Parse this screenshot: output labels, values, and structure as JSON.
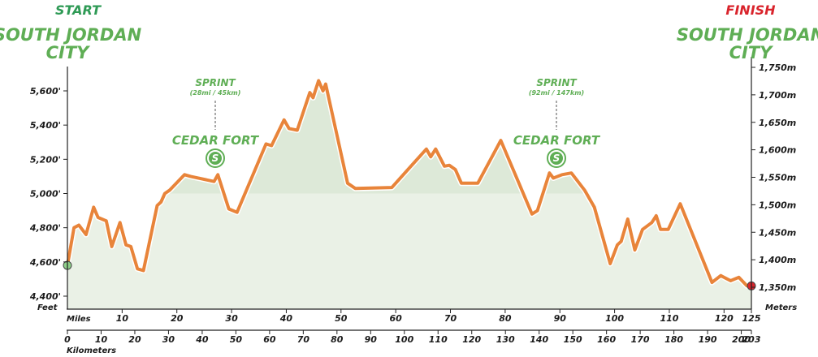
{
  "start": {
    "label": "START",
    "place_line1": "SOUTH JORDAN",
    "place_line2": "CITY"
  },
  "finish": {
    "label": "FINISH",
    "place_line1": "SOUTH JORDAN",
    "place_line2": "CITY"
  },
  "sprints": [
    {
      "title": "SPRINT",
      "detail": "(28mi / 45km)",
      "town": "CEDAR FORT",
      "icon_letter": "S",
      "mile": 27.8
    },
    {
      "title": "SPRINT",
      "detail": "(92mi / 147km)",
      "town": "CEDAR FORT",
      "icon_letter": "S",
      "mile": 91.5
    }
  ],
  "colors": {
    "profile_line": "#e8843a",
    "fill": "#eaf1e6",
    "fill_upper": "#dde9d8",
    "green": "#5fae55",
    "start_green": "#2e9a55",
    "finish_red": "#d9242c",
    "text": "#1a1a1a"
  },
  "chart_data": {
    "type": "area",
    "left_axis": {
      "title": "Feet",
      "ticks": [
        4400,
        4600,
        4800,
        5000,
        5200,
        5400,
        5600
      ],
      "tick_labels": [
        "4,400'",
        "4,600'",
        "4,800'",
        "5,000'",
        "5,200'",
        "5,400'",
        "5,600'"
      ]
    },
    "right_axis": {
      "title": "Meters",
      "ticks": [
        1350,
        1400,
        1450,
        1500,
        1550,
        1600,
        1650,
        1700,
        1750
      ],
      "tick_labels": [
        "1,350m",
        "1,400m",
        "1,450m",
        "1,500m",
        "1,550m",
        "1,600m",
        "1,650m",
        "1,700m",
        "1,750m"
      ]
    },
    "x_miles": {
      "title": "Miles",
      "ticks": [
        0,
        10,
        20,
        30,
        40,
        50,
        60,
        70,
        80,
        90,
        100,
        110,
        120,
        125
      ]
    },
    "x_km": {
      "title": "Kilometers",
      "ticks": [
        0,
        10,
        20,
        30,
        40,
        50,
        60,
        70,
        80,
        90,
        100,
        110,
        120,
        130,
        140,
        150,
        160,
        170,
        180,
        190,
        200,
        203
      ]
    },
    "elevation_ft": [
      [
        0,
        4580
      ],
      [
        1.2,
        4800
      ],
      [
        2.1,
        4815
      ],
      [
        3.4,
        4760
      ],
      [
        4.8,
        4920
      ],
      [
        5.6,
        4860
      ],
      [
        7.1,
        4840
      ],
      [
        8.1,
        4690
      ],
      [
        9.6,
        4830
      ],
      [
        10.7,
        4700
      ],
      [
        11.6,
        4690
      ],
      [
        12.8,
        4560
      ],
      [
        13.9,
        4550
      ],
      [
        16.4,
        4930
      ],
      [
        17.1,
        4950
      ],
      [
        17.8,
        5000
      ],
      [
        18.7,
        5020
      ],
      [
        21.4,
        5110
      ],
      [
        22.5,
        5100
      ],
      [
        26.8,
        5070
      ],
      [
        27.5,
        5110
      ],
      [
        29.5,
        4910
      ],
      [
        31.0,
        4890
      ],
      [
        36.3,
        5290
      ],
      [
        37.3,
        5280
      ],
      [
        39.6,
        5430
      ],
      [
        40.5,
        5380
      ],
      [
        42.0,
        5370
      ],
      [
        44.3,
        5590
      ],
      [
        44.9,
        5560
      ],
      [
        45.9,
        5660
      ],
      [
        46.7,
        5600
      ],
      [
        47.2,
        5640
      ],
      [
        51.2,
        5060
      ],
      [
        52.6,
        5030
      ],
      [
        59.3,
        5035
      ],
      [
        65.6,
        5260
      ],
      [
        66.4,
        5215
      ],
      [
        67.3,
        5260
      ],
      [
        68.9,
        5160
      ],
      [
        69.8,
        5165
      ],
      [
        70.9,
        5140
      ],
      [
        72.0,
        5060
      ],
      [
        75.0,
        5060
      ],
      [
        79.2,
        5310
      ],
      [
        84.9,
        4880
      ],
      [
        85.9,
        4900
      ],
      [
        88.1,
        5120
      ],
      [
        88.8,
        5090
      ],
      [
        90.4,
        5110
      ],
      [
        92.1,
        5120
      ],
      [
        94.5,
        5020
      ],
      [
        96.3,
        4920
      ],
      [
        99.2,
        4590
      ],
      [
        100.5,
        4700
      ],
      [
        101.2,
        4720
      ],
      [
        102.4,
        4850
      ],
      [
        103.7,
        4670
      ],
      [
        105.1,
        4790
      ],
      [
        106.8,
        4830
      ],
      [
        107.6,
        4870
      ],
      [
        108.4,
        4790
      ],
      [
        109.8,
        4790
      ],
      [
        112.0,
        4940
      ],
      [
        117.8,
        4480
      ],
      [
        119.4,
        4520
      ],
      [
        121.2,
        4490
      ],
      [
        122.7,
        4510
      ],
      [
        124.2,
        4460
      ],
      [
        125.0,
        4460
      ]
    ]
  }
}
